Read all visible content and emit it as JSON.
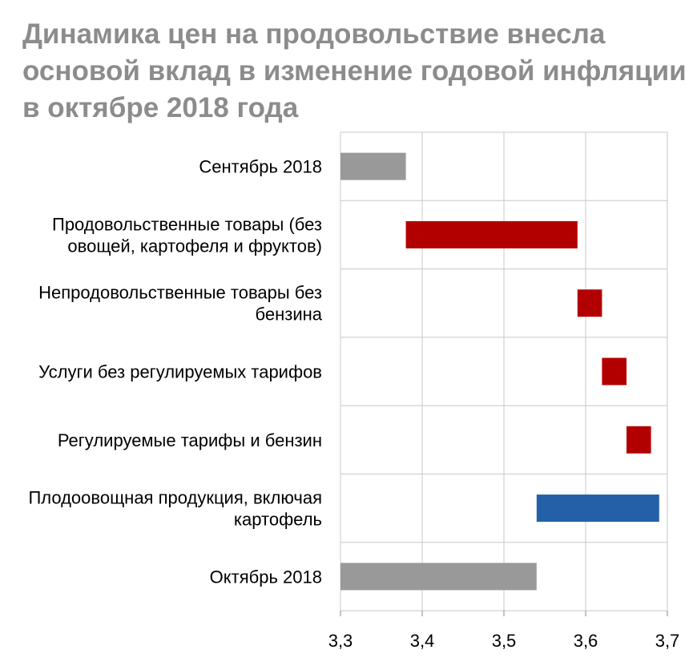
{
  "chart_data": {
    "type": "bar",
    "orientation": "horizontal",
    "subtype": "waterfall",
    "title": [
      "Динамика цен на продовольствие внесла",
      "основой вклад в изменение годовой инфляции",
      "в октябре 2018 года"
    ],
    "categories": [
      [
        "Сентябрь 2018"
      ],
      [
        "Продовольственные товары (без",
        "овощей, картофеля и фруктов)"
      ],
      [
        "Непродовольственные товары без",
        "бензина"
      ],
      [
        "Услуги без регулируемых тарифов"
      ],
      [
        "Регулируемые тарифы и бензин"
      ],
      [
        "Плодоовощная продукция, включая",
        "картофель"
      ],
      [
        "Октябрь 2018"
      ]
    ],
    "bars": [
      {
        "start": 3.3,
        "end": 3.38,
        "color": "#999999"
      },
      {
        "start": 3.38,
        "end": 3.59,
        "color": "#b20000"
      },
      {
        "start": 3.59,
        "end": 3.62,
        "color": "#b20000"
      },
      {
        "start": 3.62,
        "end": 3.65,
        "color": "#b20000"
      },
      {
        "start": 3.65,
        "end": 3.68,
        "color": "#b20000"
      },
      {
        "start": 3.54,
        "end": 3.69,
        "color": "#2460a7"
      },
      {
        "start": 3.3,
        "end": 3.54,
        "color": "#999999"
      }
    ],
    "xlim": [
      3.3,
      3.7
    ],
    "xticks": [
      "3,3",
      "3,4",
      "3,5",
      "3,6",
      "3,7"
    ],
    "grid": true,
    "title_color": "#8c8c8c",
    "grid_color": "#c8c8c8"
  }
}
